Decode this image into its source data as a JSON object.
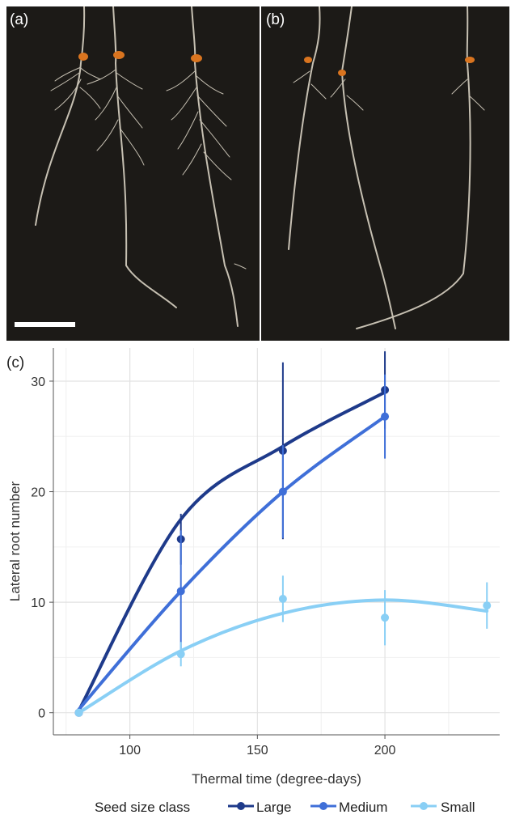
{
  "panels": {
    "a_label": "(a)",
    "b_label": "(b)",
    "c_label": "(c)"
  },
  "chart_data": {
    "type": "line",
    "xlabel": "Thermal time (degree-days)",
    "ylabel": "Lateral root number",
    "xlim": [
      70,
      245
    ],
    "ylim": [
      -2,
      33
    ],
    "x_ticks": [
      100,
      150,
      200
    ],
    "y_ticks": [
      0,
      10,
      20,
      30
    ],
    "grid": true,
    "legend_title": "Seed size class",
    "legend_position": "bottom",
    "series": [
      {
        "name": "Large",
        "color": "#1e3a8a",
        "points": [
          {
            "x": 80,
            "y": 0,
            "err": 0
          },
          {
            "x": 120,
            "y": 15.7,
            "err": 2.3
          },
          {
            "x": 160,
            "y": 23.7,
            "err": 8
          },
          {
            "x": 200,
            "y": 29.2,
            "err": 3.5
          }
        ],
        "fit": [
          0.2,
          17.5,
          24.1,
          29
        ]
      },
      {
        "name": "Medium",
        "color": "#3f6fd8",
        "points": [
          {
            "x": 80,
            "y": 0,
            "err": 0
          },
          {
            "x": 120,
            "y": 11.0,
            "err": 5.5
          },
          {
            "x": 160,
            "y": 20.0,
            "err": 4.2
          },
          {
            "x": 200,
            "y": 26.8,
            "err": 3.8
          }
        ],
        "fit": [
          0.3,
          11.0,
          20.0,
          26.8
        ]
      },
      {
        "name": "Small",
        "color": "#89cff5",
        "points": [
          {
            "x": 80,
            "y": 0,
            "err": 0
          },
          {
            "x": 120,
            "y": 5.3,
            "err": 1.1
          },
          {
            "x": 160,
            "y": 10.3,
            "err": 2.1
          },
          {
            "x": 200,
            "y": 8.6,
            "err": 2.5
          },
          {
            "x": 240,
            "y": 9.7,
            "err": 2.1
          }
        ],
        "fit": [
          0.0,
          5.6,
          9.0,
          10.2,
          9.2
        ]
      }
    ]
  }
}
